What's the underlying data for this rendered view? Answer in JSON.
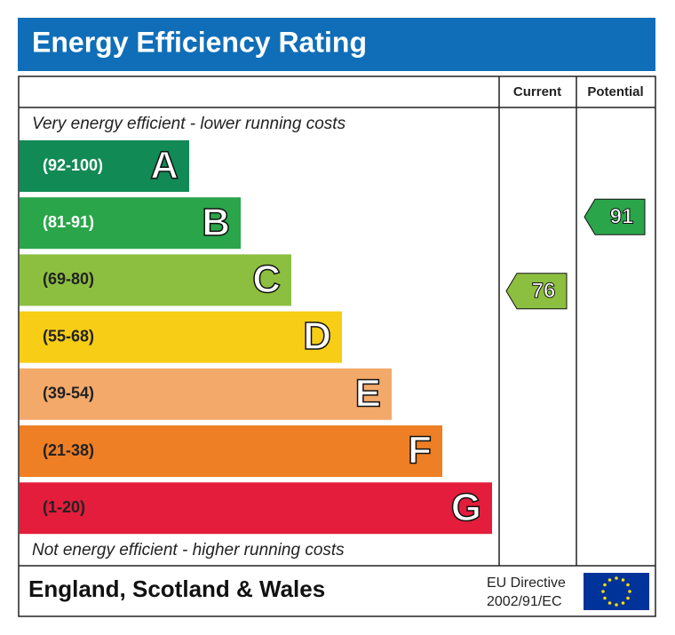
{
  "header": {
    "title": "Energy Efficiency Rating"
  },
  "columns": {
    "current": "Current",
    "potential": "Potential"
  },
  "top_note": "Very energy efficient - lower running costs",
  "bottom_note": "Not energy efficient - higher running costs",
  "bands": [
    {
      "range": "(92-100)",
      "letter": "A",
      "color": "#118a55"
    },
    {
      "range": "(81-91)",
      "letter": "B",
      "color": "#2aa54a"
    },
    {
      "range": "(69-80)",
      "letter": "C",
      "color": "#8cbf3f"
    },
    {
      "range": "(55-68)",
      "letter": "D",
      "color": "#f7cd15"
    },
    {
      "range": "(39-54)",
      "letter": "E",
      "color": "#f3a96a"
    },
    {
      "range": "(21-38)",
      "letter": "F",
      "color": "#ee7f25"
    },
    {
      "range": "(1-20)",
      "letter": "G",
      "color": "#e31d3b"
    }
  ],
  "current": {
    "value": 76,
    "color": "#8cbf3f"
  },
  "potential": {
    "value": 91,
    "color": "#2aa54a"
  },
  "footer": {
    "region": "England, Scotland & Wales",
    "directive_line1": "EU Directive",
    "directive_line2": "2002/91/EC"
  }
}
